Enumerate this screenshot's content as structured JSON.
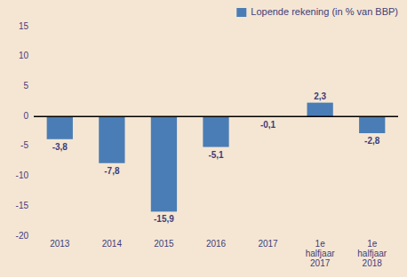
{
  "chart_data": {
    "type": "bar",
    "categories": [
      "2013",
      "2014",
      "2015",
      "2016",
      "2017",
      "1e\nhalfjaar\n2017",
      "1e\nhalfjaar\n2018"
    ],
    "series": [
      {
        "name": "Lopende rekening (in % van BBP)",
        "color": "#4a7db5",
        "values": [
          -3.8,
          -7.8,
          -15.9,
          -5.1,
          -0.1,
          2.3,
          -2.8
        ],
        "value_labels": [
          "-3,8",
          "-7,8",
          "-15,9",
          "-5,1",
          "-0,1",
          "2,3",
          "-2,8"
        ]
      }
    ],
    "ylim": [
      -20,
      15
    ],
    "yticks": [
      -20,
      -15,
      -10,
      -5,
      0,
      5,
      10,
      15
    ],
    "data_labels": true,
    "legend": "upper right",
    "grid": false
  }
}
